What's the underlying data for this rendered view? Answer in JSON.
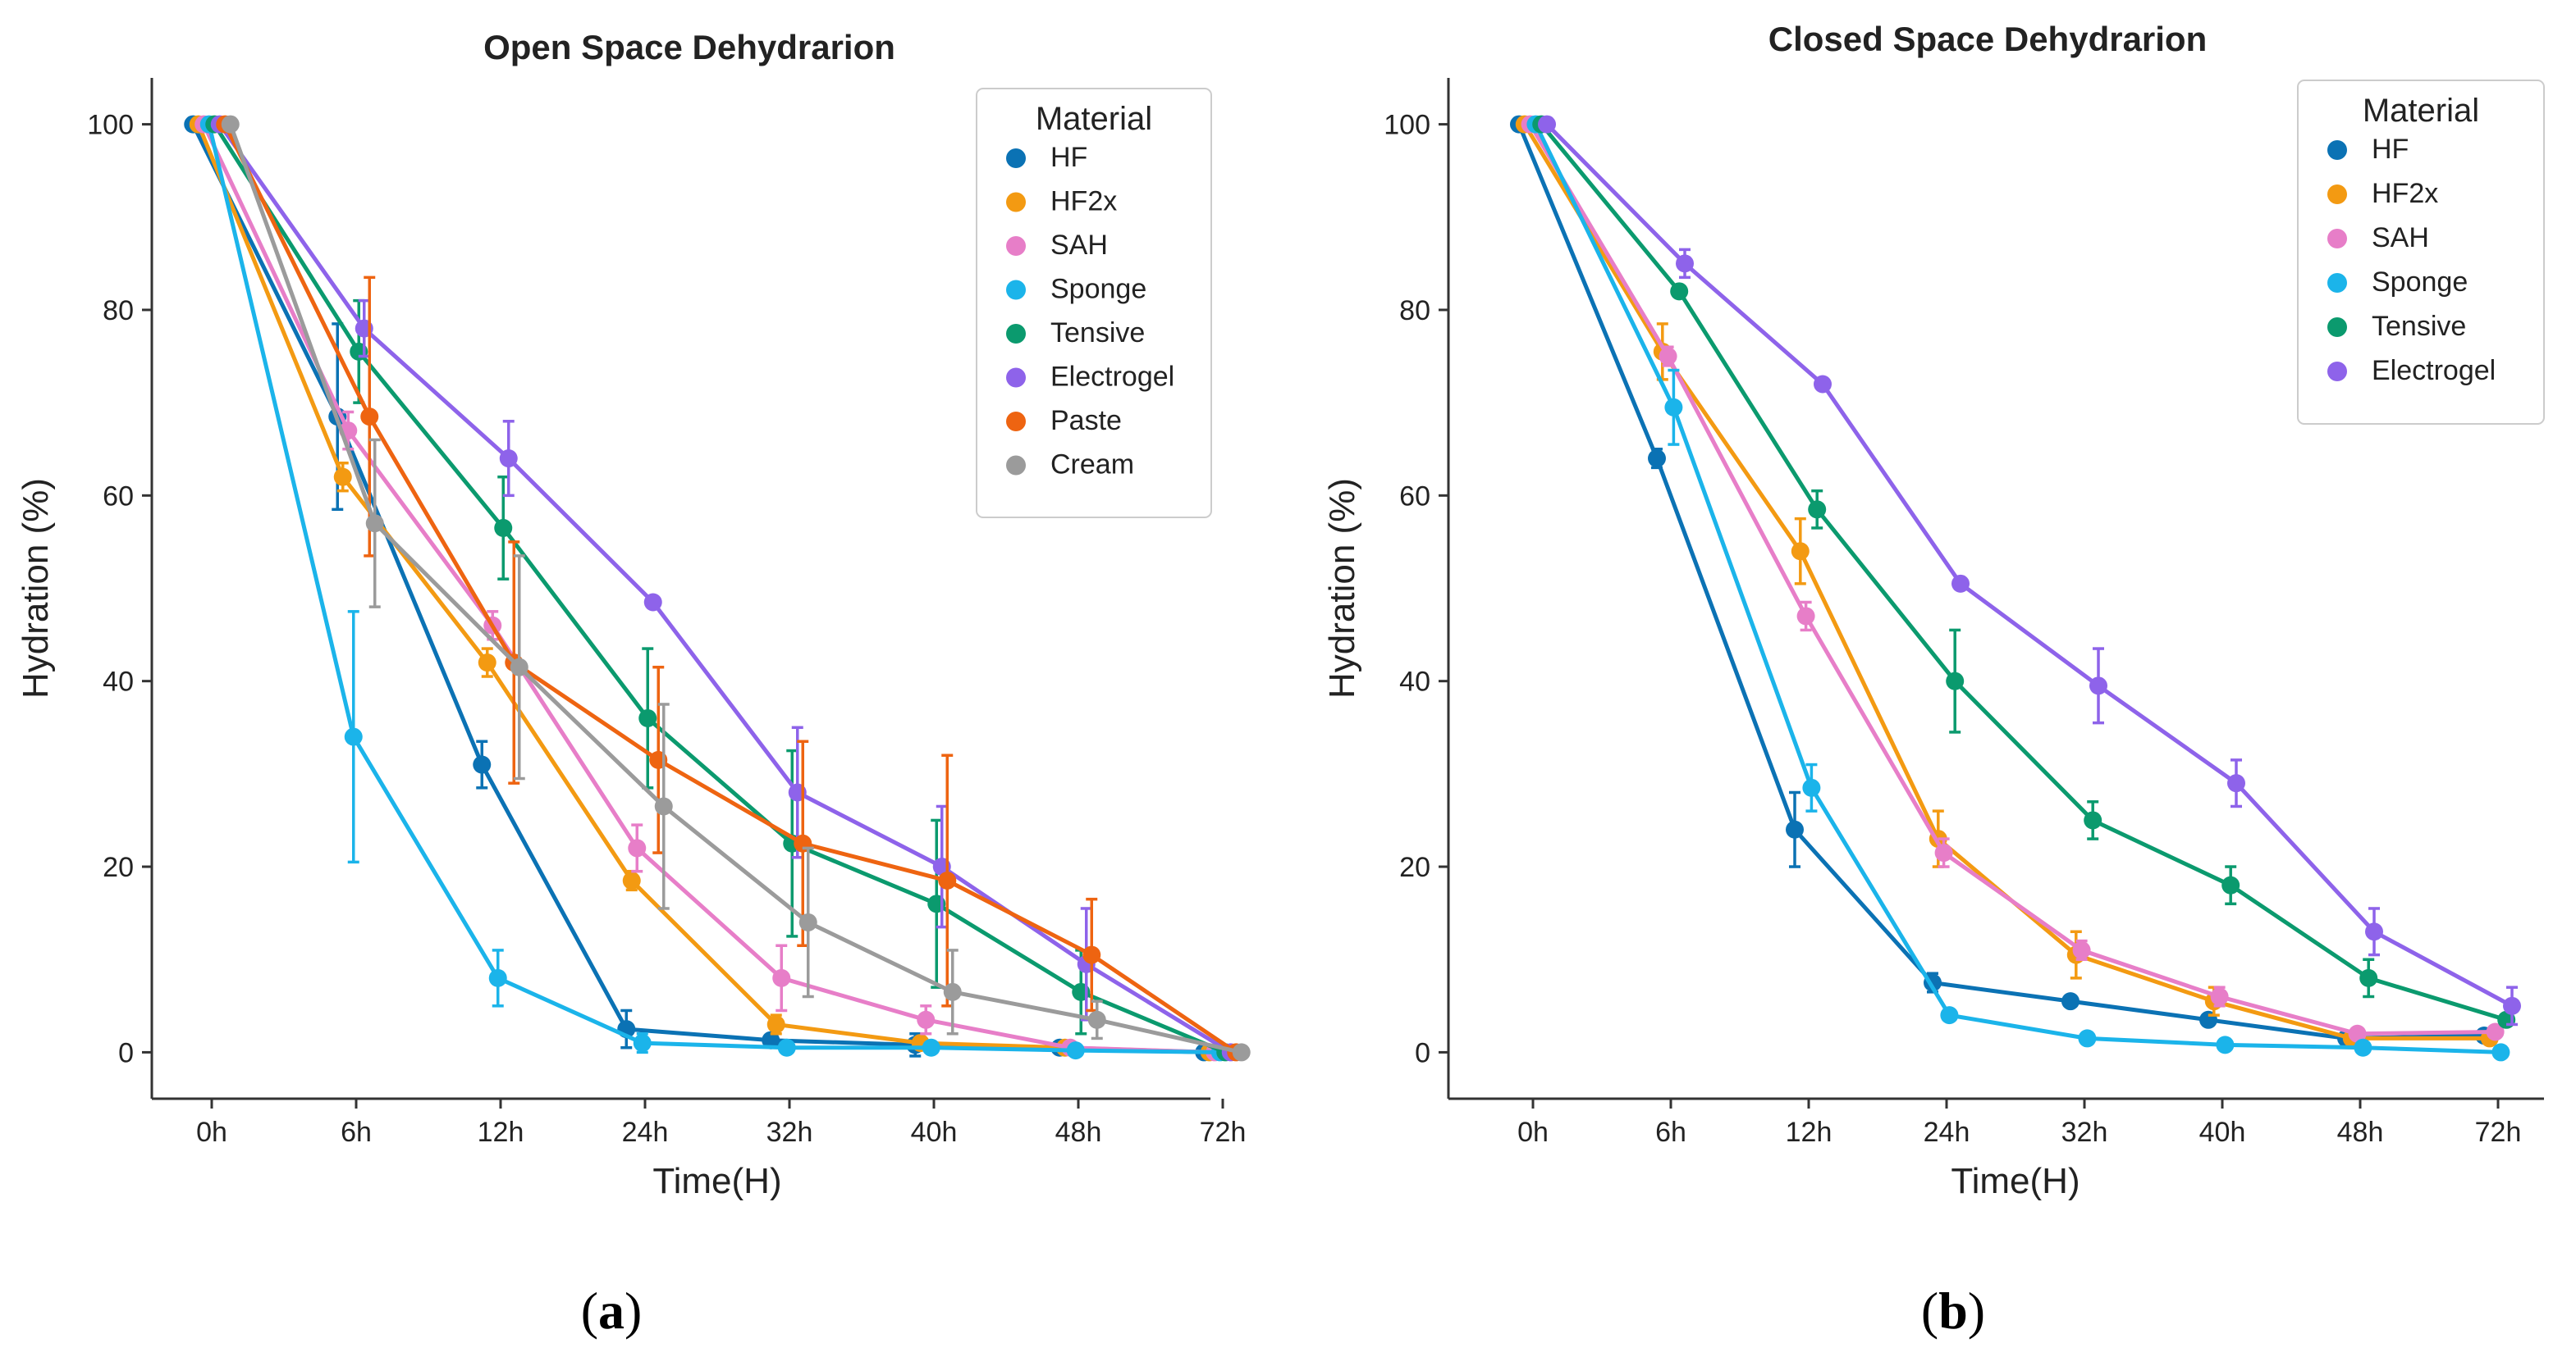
{
  "colors": {
    "HF": "#0b72b4",
    "HF2x": "#f39a12",
    "SAH": "#e77ec8",
    "Sponge": "#1bb4ea",
    "Tensive": "#0b9a6e",
    "Electrogel": "#8e63ea",
    "Paste": "#ee6411",
    "Cream": "#9b9b9b"
  },
  "chart_data": [
    {
      "type": "line",
      "panel_label": "(a)",
      "panel_label_parts": [
        "(",
        "a",
        ")"
      ],
      "title": "Open Space Dehydrarion",
      "xlabel": "Time(H)",
      "ylabel": "Hydration (%)",
      "ylim": [
        -5,
        105
      ],
      "yticks": [
        0,
        20,
        40,
        60,
        80,
        100
      ],
      "yticklabels": [
        "0",
        "20",
        "40",
        "60",
        "80",
        "100"
      ],
      "categories": [
        "0h",
        "6h",
        "12h",
        "24h",
        "32h",
        "40h",
        "48h",
        "72h"
      ],
      "legend_title": "Material",
      "legend_position": "top-right",
      "series": [
        {
          "name": "HF",
          "values": [
            100,
            68.5,
            31,
            2.5,
            1.3,
            0.8,
            0.5,
            0
          ],
          "errors": [
            0,
            10,
            2.5,
            2,
            0.5,
            1.2,
            0.5,
            0
          ]
        },
        {
          "name": "HF2x",
          "values": [
            100,
            62,
            42,
            18.5,
            3,
            1,
            0.5,
            0
          ],
          "errors": [
            0,
            1.5,
            1.5,
            1,
            1,
            0.5,
            0.3,
            0
          ]
        },
        {
          "name": "SAH",
          "values": [
            100,
            67,
            46,
            22,
            8,
            3.5,
            0.5,
            0
          ],
          "errors": [
            0,
            2,
            1.5,
            2.5,
            3.5,
            1.5,
            0.5,
            0
          ]
        },
        {
          "name": "Sponge",
          "values": [
            100,
            34,
            8,
            1,
            0.5,
            0.5,
            0.2,
            0
          ],
          "errors": [
            0,
            13.5,
            3,
            1,
            0.5,
            0.5,
            0.2,
            0
          ]
        },
        {
          "name": "Tensive",
          "values": [
            100,
            75.5,
            56.5,
            36,
            22.5,
            16,
            6.5,
            0
          ],
          "errors": [
            0,
            5.5,
            5.5,
            7.5,
            10,
            9,
            4.5,
            0
          ]
        },
        {
          "name": "Electrogel",
          "values": [
            100,
            78,
            64,
            48.5,
            28,
            20,
            9.5,
            0
          ],
          "errors": [
            0,
            3,
            4,
            0.5,
            7,
            6.5,
            6,
            0
          ]
        },
        {
          "name": "Paste",
          "values": [
            100,
            68.5,
            42,
            31.5,
            22.5,
            18.5,
            10.5,
            0
          ],
          "errors": [
            0,
            15,
            13,
            10,
            11,
            13.5,
            6,
            0
          ]
        },
        {
          "name": "Cream",
          "values": [
            100,
            57,
            41.5,
            26.5,
            14,
            6.5,
            3.5,
            0
          ],
          "errors": [
            0,
            9,
            12,
            11,
            8,
            4.5,
            2,
            0
          ]
        }
      ]
    },
    {
      "type": "line",
      "panel_label": "(b)",
      "panel_label_parts": [
        "(",
        "b",
        ")"
      ],
      "title": "Closed Space Dehydrarion",
      "xlabel": "Time(H)",
      "ylabel": "Hydration (%)",
      "ylim": [
        -5,
        105
      ],
      "yticks": [
        0,
        20,
        40,
        60,
        80,
        100
      ],
      "yticklabels": [
        "0",
        "20",
        "40",
        "60",
        "80",
        "100"
      ],
      "categories": [
        "0h",
        "6h",
        "12h",
        "24h",
        "32h",
        "40h",
        "48h",
        "72h"
      ],
      "legend_title": "Material",
      "legend_position": "top-right",
      "series": [
        {
          "name": "HF",
          "values": [
            100,
            64,
            24,
            7.5,
            5.5,
            3.5,
            1.5,
            1.8
          ],
          "errors": [
            0,
            1,
            4,
            1,
            0.5,
            0.5,
            0.5,
            0.5
          ]
        },
        {
          "name": "HF2x",
          "values": [
            100,
            75.5,
            54,
            23,
            10.5,
            5.5,
            1.5,
            1.5
          ],
          "errors": [
            0,
            3,
            3.5,
            3,
            2.5,
            1.5,
            0.5,
            0.5
          ]
        },
        {
          "name": "SAH",
          "values": [
            100,
            75,
            47,
            21.5,
            11,
            6,
            2,
            2.2
          ],
          "errors": [
            0,
            1,
            1.5,
            1.5,
            1,
            1,
            0.5,
            0.5
          ]
        },
        {
          "name": "Sponge",
          "values": [
            100,
            69.5,
            28.5,
            4,
            1.5,
            0.8,
            0.5,
            0
          ],
          "errors": [
            0,
            4,
            2.5,
            0.5,
            0.3,
            0.3,
            0.2,
            0
          ]
        },
        {
          "name": "Tensive",
          "values": [
            100,
            82,
            58.5,
            40,
            25,
            18,
            8,
            3.5
          ],
          "errors": [
            0,
            0.5,
            2,
            5.5,
            2,
            2,
            2,
            0.5
          ]
        },
        {
          "name": "Electrogel",
          "values": [
            100,
            85,
            72,
            50.5,
            39.5,
            29,
            13,
            5
          ],
          "errors": [
            0,
            1.5,
            0.5,
            0.5,
            4,
            2.5,
            2.5,
            2
          ]
        }
      ]
    }
  ]
}
